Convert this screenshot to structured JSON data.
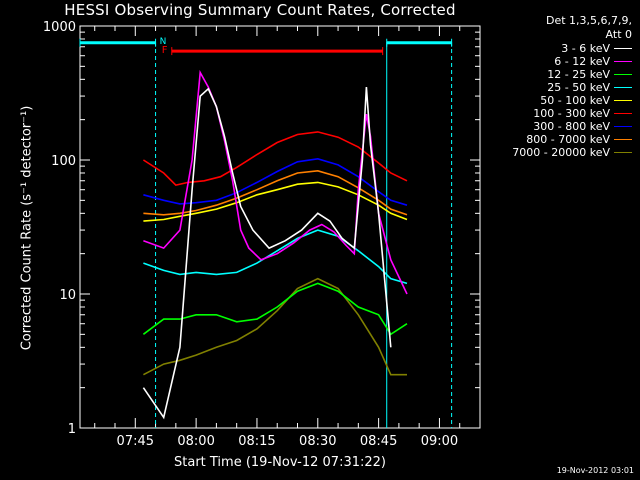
{
  "chart_data": {
    "type": "line",
    "title": "HESSI Observing Summary Count Rates, Corrected",
    "xlabel": "Start Time (19-Nov-12 07:31:22)",
    "ylabel": "Corrected Count Rate (s⁻¹ detector⁻¹)",
    "x_ticks": [
      "07:45",
      "08:00",
      "08:15",
      "08:30",
      "08:45",
      "09:00"
    ],
    "y_ticks": [
      "1",
      "10",
      "100",
      "1000"
    ],
    "y_scale": "log",
    "ylim": [
      1,
      1000
    ],
    "xlim": [
      "07:31:22",
      "09:10:00"
    ],
    "legend_header": [
      "Det 1,3,5,6,7,9,",
      "Att 0"
    ],
    "markers": {
      "N": "N",
      "F": "F"
    },
    "series": [
      {
        "name": "3 - 6 keV",
        "color": "#ffffff",
        "points": [
          [
            "07:47",
            2
          ],
          [
            "07:52",
            1.2
          ],
          [
            "07:56",
            4
          ],
          [
            "07:59",
            60
          ],
          [
            "08:01",
            300
          ],
          [
            "08:03",
            340
          ],
          [
            "08:05",
            250
          ],
          [
            "08:07",
            150
          ],
          [
            "08:09",
            80
          ],
          [
            "08:11",
            45
          ],
          [
            "08:14",
            30
          ],
          [
            "08:18",
            22
          ],
          [
            "08:22",
            25
          ],
          [
            "08:26",
            30
          ],
          [
            "08:30",
            40
          ],
          [
            "08:33",
            35
          ],
          [
            "08:36",
            26
          ],
          [
            "08:39",
            22
          ],
          [
            "08:41",
            100
          ],
          [
            "08:42",
            350
          ],
          [
            "08:43",
            130
          ],
          [
            "08:45",
            40
          ],
          [
            "08:48",
            4
          ]
        ]
      },
      {
        "name": "6 - 12 keV",
        "color": "#ff00ff",
        "points": [
          [
            "07:47",
            25
          ],
          [
            "07:52",
            22
          ],
          [
            "07:56",
            30
          ],
          [
            "07:59",
            100
          ],
          [
            "08:01",
            450
          ],
          [
            "08:03",
            350
          ],
          [
            "08:05",
            250
          ],
          [
            "08:07",
            140
          ],
          [
            "08:09",
            70
          ],
          [
            "08:11",
            30
          ],
          [
            "08:13",
            22
          ],
          [
            "08:16",
            18
          ],
          [
            "08:20",
            20
          ],
          [
            "08:24",
            24
          ],
          [
            "08:28",
            30
          ],
          [
            "08:31",
            33
          ],
          [
            "08:34",
            29
          ],
          [
            "08:37",
            23
          ],
          [
            "08:39",
            20
          ],
          [
            "08:40",
            60
          ],
          [
            "08:42",
            220
          ],
          [
            "08:43",
            150
          ],
          [
            "08:45",
            40
          ],
          [
            "08:48",
            18
          ],
          [
            "08:52",
            10
          ]
        ]
      },
      {
        "name": "12 - 25 keV",
        "color": "#00ff00",
        "points": [
          [
            "07:47",
            5
          ],
          [
            "07:52",
            6.5
          ],
          [
            "07:56",
            6.5
          ],
          [
            "08:00",
            7
          ],
          [
            "08:05",
            7
          ],
          [
            "08:10",
            6.2
          ],
          [
            "08:15",
            6.5
          ],
          [
            "08:20",
            8
          ],
          [
            "08:25",
            10.5
          ],
          [
            "08:30",
            12
          ],
          [
            "08:35",
            10.5
          ],
          [
            "08:40",
            8
          ],
          [
            "08:45",
            7
          ],
          [
            "08:48",
            5
          ],
          [
            "08:52",
            6
          ]
        ]
      },
      {
        "name": "25 - 50 keV",
        "color": "#00ffff",
        "points": [
          [
            "07:47",
            17
          ],
          [
            "07:52",
            15
          ],
          [
            "07:56",
            14
          ],
          [
            "08:00",
            14.5
          ],
          [
            "08:05",
            14
          ],
          [
            "08:10",
            14.5
          ],
          [
            "08:15",
            17
          ],
          [
            "08:20",
            21
          ],
          [
            "08:25",
            26
          ],
          [
            "08:30",
            30
          ],
          [
            "08:35",
            27
          ],
          [
            "08:40",
            21
          ],
          [
            "08:45",
            16
          ],
          [
            "08:48",
            13
          ],
          [
            "08:52",
            12
          ]
        ]
      },
      {
        "name": "50 - 100 keV",
        "color": "#ffff00",
        "points": [
          [
            "07:47",
            35
          ],
          [
            "07:52",
            36
          ],
          [
            "07:56",
            38
          ],
          [
            "08:00",
            40
          ],
          [
            "08:05",
            43
          ],
          [
            "08:10",
            48
          ],
          [
            "08:15",
            55
          ],
          [
            "08:20",
            60
          ],
          [
            "08:25",
            66
          ],
          [
            "08:30",
            68
          ],
          [
            "08:35",
            63
          ],
          [
            "08:40",
            55
          ],
          [
            "08:45",
            46
          ],
          [
            "08:48",
            40
          ],
          [
            "08:52",
            36
          ]
        ]
      },
      {
        "name": "100 - 300 keV",
        "color": "#ff0000",
        "points": [
          [
            "07:47",
            100
          ],
          [
            "07:52",
            80
          ],
          [
            "07:55",
            65
          ],
          [
            "07:58",
            68
          ],
          [
            "08:02",
            70
          ],
          [
            "08:06",
            75
          ],
          [
            "08:10",
            88
          ],
          [
            "08:15",
            110
          ],
          [
            "08:20",
            135
          ],
          [
            "08:25",
            155
          ],
          [
            "08:30",
            162
          ],
          [
            "08:35",
            148
          ],
          [
            "08:40",
            125
          ],
          [
            "08:45",
            95
          ],
          [
            "08:48",
            80
          ],
          [
            "08:52",
            70
          ]
        ]
      },
      {
        "name": "300 - 800 keV",
        "color": "#0000ff",
        "points": [
          [
            "07:47",
            55
          ],
          [
            "07:52",
            50
          ],
          [
            "07:56",
            47
          ],
          [
            "08:00",
            48
          ],
          [
            "08:05",
            50
          ],
          [
            "08:10",
            57
          ],
          [
            "08:15",
            68
          ],
          [
            "08:20",
            82
          ],
          [
            "08:25",
            97
          ],
          [
            "08:30",
            102
          ],
          [
            "08:35",
            92
          ],
          [
            "08:40",
            75
          ],
          [
            "08:45",
            58
          ],
          [
            "08:48",
            50
          ],
          [
            "08:52",
            46
          ]
        ]
      },
      {
        "name": "800 - 7000 keV",
        "color": "#ff8000",
        "points": [
          [
            "07:47",
            40
          ],
          [
            "07:52",
            39
          ],
          [
            "07:56",
            40
          ],
          [
            "08:00",
            42
          ],
          [
            "08:05",
            46
          ],
          [
            "08:10",
            52
          ],
          [
            "08:15",
            60
          ],
          [
            "08:20",
            70
          ],
          [
            "08:25",
            80
          ],
          [
            "08:30",
            83
          ],
          [
            "08:35",
            75
          ],
          [
            "08:40",
            62
          ],
          [
            "08:45",
            50
          ],
          [
            "08:48",
            43
          ],
          [
            "08:52",
            39
          ]
        ]
      },
      {
        "name": "7000 - 20000 keV",
        "color": "#808000",
        "points": [
          [
            "07:47",
            2.5
          ],
          [
            "07:52",
            3
          ],
          [
            "07:56",
            3.2
          ],
          [
            "08:00",
            3.5
          ],
          [
            "08:05",
            4
          ],
          [
            "08:10",
            4.5
          ],
          [
            "08:15",
            5.5
          ],
          [
            "08:20",
            7.5
          ],
          [
            "08:25",
            11
          ],
          [
            "08:30",
            13
          ],
          [
            "08:35",
            11
          ],
          [
            "08:40",
            7
          ],
          [
            "08:45",
            4
          ],
          [
            "08:48",
            2.5
          ],
          [
            "08:52",
            2.5
          ]
        ]
      }
    ],
    "intervals": [
      {
        "type": "night",
        "color": "#00ffff",
        "ranges": [
          [
            "07:31:22",
            "07:50"
          ],
          [
            "08:47",
            "09:03"
          ]
        ],
        "level": 750
      },
      {
        "type": "flare",
        "color": "#ff0000",
        "ranges": [
          [
            "07:54",
            "08:46"
          ]
        ],
        "level": 650
      }
    ],
    "vlines": [
      {
        "t": "07:50",
        "color": "#00ffff",
        "style": "dashed"
      },
      {
        "t": "08:47",
        "color": "#00ffff",
        "style": "solid"
      },
      {
        "t": "09:03",
        "color": "#00ffff",
        "style": "dashed"
      }
    ],
    "grid": false,
    "legend_position": "right"
  },
  "footer_timestamp": "19-Nov-2012 03:01"
}
